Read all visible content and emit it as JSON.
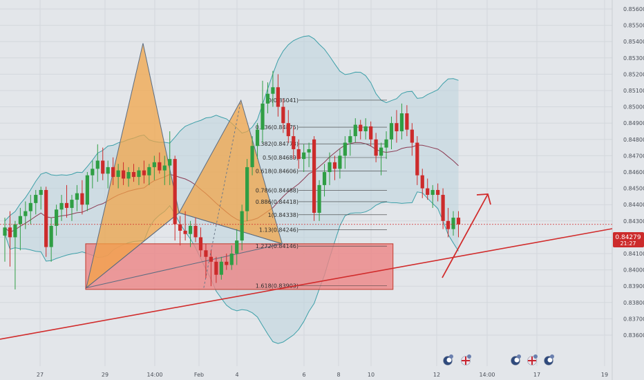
{
  "colors": {
    "background": "#e3e6ea",
    "grid": "#d3d7dc",
    "bull": "#2f9e44",
    "bear": "#cc2b2b",
    "band_line": "#3c9fa8",
    "band_fill": "#bdd3dd",
    "mid_line": "#8b3a52",
    "pattern_fill": "#f2a444",
    "zone_fill": "#ec8585",
    "zone_border": "#c0392b",
    "trendline": "#d12b2b",
    "price_badge": "#cc2b2b"
  },
  "axis": {
    "price_ticks": [
      "0.85600",
      "0.85500",
      "0.85400",
      "0.85300",
      "0.85200",
      "0.85100",
      "0.85000",
      "0.84900",
      "0.84800",
      "0.84700",
      "0.84600",
      "0.84500",
      "0.84400",
      "0.84300",
      "0.84200",
      "0.84100",
      "0.84000",
      "0.83900",
      "0.83800",
      "0.83700",
      "0.83600"
    ],
    "time_ticks": [
      "27",
      "29",
      "14:00",
      "Feb",
      "4",
      "6",
      "8",
      "10",
      "12",
      "14:00",
      "17",
      "19"
    ]
  },
  "price_badge": {
    "value": "0.84279",
    "countdown": "21:27"
  },
  "icons": [
    "moon-event-icon",
    "uk-flag-icon",
    "moon-event-icon",
    "uk-flag-icon",
    "moon-event-icon"
  ],
  "chart_data": {
    "type": "candlestick",
    "ylim": [
      0.8355,
      0.8562
    ],
    "candles": [
      [
        0.8421,
        0.8432,
        0.8405,
        0.8426
      ],
      [
        0.8426,
        0.8436,
        0.8402,
        0.842
      ],
      [
        0.842,
        0.843,
        0.8388,
        0.8428
      ],
      [
        0.8428,
        0.8438,
        0.8412,
        0.8433
      ],
      [
        0.8433,
        0.8442,
        0.8425,
        0.8436
      ],
      [
        0.8436,
        0.8446,
        0.8428,
        0.8441
      ],
      [
        0.8441,
        0.8449,
        0.8434,
        0.8446
      ],
      [
        0.8446,
        0.8451,
        0.8437,
        0.8449
      ],
      [
        0.8449,
        0.8451,
        0.8408,
        0.8414
      ],
      [
        0.8414,
        0.8432,
        0.8405,
        0.8427
      ],
      [
        0.8427,
        0.844,
        0.8421,
        0.8437
      ],
      [
        0.8437,
        0.8446,
        0.843,
        0.8441
      ],
      [
        0.8441,
        0.8452,
        0.8432,
        0.8438
      ],
      [
        0.8438,
        0.8446,
        0.843,
        0.8443
      ],
      [
        0.8443,
        0.8452,
        0.8436,
        0.8447
      ],
      [
        0.8447,
        0.8455,
        0.8434,
        0.844
      ],
      [
        0.844,
        0.846,
        0.8436,
        0.8458
      ],
      [
        0.8458,
        0.8467,
        0.845,
        0.8462
      ],
      [
        0.8462,
        0.8477,
        0.8454,
        0.8467
      ],
      [
        0.8467,
        0.8475,
        0.8455,
        0.8459
      ],
      [
        0.8459,
        0.8467,
        0.845,
        0.8463
      ],
      [
        0.8463,
        0.8469,
        0.8452,
        0.8457
      ],
      [
        0.8457,
        0.8465,
        0.845,
        0.8461
      ],
      [
        0.8461,
        0.8466,
        0.8452,
        0.8456
      ],
      [
        0.8456,
        0.8463,
        0.8451,
        0.846
      ],
      [
        0.846,
        0.8465,
        0.8454,
        0.8457
      ],
      [
        0.8457,
        0.8463,
        0.8452,
        0.8461
      ],
      [
        0.8461,
        0.8467,
        0.8453,
        0.8458
      ],
      [
        0.8458,
        0.8465,
        0.8452,
        0.8463
      ],
      [
        0.8463,
        0.847,
        0.8455,
        0.8466
      ],
      [
        0.8466,
        0.8472,
        0.8459,
        0.8461
      ],
      [
        0.8461,
        0.847,
        0.8452,
        0.8464
      ],
      [
        0.8464,
        0.8485,
        0.8452,
        0.8468
      ],
      [
        0.8468,
        0.847,
        0.8418,
        0.8428
      ],
      [
        0.8428,
        0.8433,
        0.8415,
        0.8424
      ],
      [
        0.8424,
        0.8436,
        0.8418,
        0.8422
      ],
      [
        0.8422,
        0.843,
        0.8414,
        0.8427
      ],
      [
        0.8427,
        0.8432,
        0.8417,
        0.842
      ],
      [
        0.842,
        0.8426,
        0.8408,
        0.8412
      ],
      [
        0.8412,
        0.8416,
        0.8395,
        0.8408
      ],
      [
        0.8408,
        0.8412,
        0.839,
        0.8405
      ],
      [
        0.8405,
        0.8408,
        0.8392,
        0.8397
      ],
      [
        0.8397,
        0.8408,
        0.8394,
        0.8405
      ],
      [
        0.8405,
        0.841,
        0.84,
        0.8403
      ],
      [
        0.8403,
        0.8415,
        0.84,
        0.841
      ],
      [
        0.841,
        0.8425,
        0.8403,
        0.8418
      ],
      [
        0.8418,
        0.844,
        0.8412,
        0.8436
      ],
      [
        0.8436,
        0.8468,
        0.843,
        0.8463
      ],
      [
        0.8463,
        0.8482,
        0.8458,
        0.8476
      ],
      [
        0.8476,
        0.849,
        0.8468,
        0.8486
      ],
      [
        0.8486,
        0.8516,
        0.8478,
        0.8502
      ],
      [
        0.8502,
        0.8515,
        0.8496,
        0.8508
      ],
      [
        0.8508,
        0.8522,
        0.85,
        0.8512
      ],
      [
        0.8512,
        0.852,
        0.8494,
        0.85
      ],
      [
        0.85,
        0.8505,
        0.8484,
        0.849
      ],
      [
        0.849,
        0.8498,
        0.8478,
        0.8482
      ],
      [
        0.8482,
        0.8488,
        0.8468,
        0.8474
      ],
      [
        0.8474,
        0.848,
        0.8462,
        0.8468
      ],
      [
        0.8468,
        0.8477,
        0.846,
        0.8472
      ],
      [
        0.8472,
        0.8478,
        0.8463,
        0.8474
      ],
      [
        0.848,
        0.8482,
        0.843,
        0.8435
      ],
      [
        0.8435,
        0.8455,
        0.843,
        0.8452
      ],
      [
        0.8452,
        0.8465,
        0.8445,
        0.846
      ],
      [
        0.846,
        0.8472,
        0.8452,
        0.8466
      ],
      [
        0.8466,
        0.847,
        0.8455,
        0.8462
      ],
      [
        0.8462,
        0.8474,
        0.8456,
        0.847
      ],
      [
        0.847,
        0.8482,
        0.8462,
        0.8478
      ],
      [
        0.8478,
        0.8486,
        0.847,
        0.8482
      ],
      [
        0.8482,
        0.8493,
        0.8478,
        0.8489
      ],
      [
        0.8489,
        0.8492,
        0.848,
        0.8485
      ],
      [
        0.8485,
        0.8493,
        0.848,
        0.8488
      ],
      [
        0.8488,
        0.8491,
        0.8476,
        0.848
      ],
      [
        0.848,
        0.8484,
        0.8466,
        0.847
      ],
      [
        0.847,
        0.8478,
        0.8458,
        0.8475
      ],
      [
        0.8475,
        0.8485,
        0.8468,
        0.848
      ],
      [
        0.848,
        0.8494,
        0.8474,
        0.849
      ],
      [
        0.849,
        0.8498,
        0.8478,
        0.8485
      ],
      [
        0.8485,
        0.8502,
        0.848,
        0.8496
      ],
      [
        0.8496,
        0.8501,
        0.8482,
        0.8486
      ],
      [
        0.8486,
        0.849,
        0.847,
        0.8478
      ],
      [
        0.8478,
        0.8482,
        0.8452,
        0.8458
      ],
      [
        0.8458,
        0.8462,
        0.8444,
        0.845
      ],
      [
        0.845,
        0.8456,
        0.8443,
        0.8446
      ],
      [
        0.8446,
        0.8452,
        0.8438,
        0.8449
      ],
      [
        0.8449,
        0.8453,
        0.8442,
        0.8446
      ],
      [
        0.8446,
        0.845,
        0.8425,
        0.843
      ],
      [
        0.843,
        0.8438,
        0.842,
        0.8425
      ],
      [
        0.8425,
        0.8436,
        0.8421,
        0.8432
      ],
      [
        0.8432,
        0.8436,
        0.842,
        0.8428
      ]
    ],
    "current_price": 0.84279,
    "fibonacci_levels": [
      {
        "label": "0(0.85041)",
        "price": 0.85041
      },
      {
        "label": "0.236(0.84875)",
        "price": 0.84875
      },
      {
        "label": "0.382(0.84773)",
        "price": 0.84773
      },
      {
        "label": "0.5(0.84689)",
        "price": 0.84689
      },
      {
        "label": "0.618(0.84606)",
        "price": 0.84606
      },
      {
        "label": "0.786(0.84488)",
        "price": 0.84488
      },
      {
        "label": "0.886(0.84418)",
        "price": 0.84418
      },
      {
        "label": "1(0.84338)",
        "price": 0.84338
      },
      {
        "label": "1.13(0.84246)",
        "price": 0.84246
      },
      {
        "label": "1.272(0.84146)",
        "price": 0.84146
      },
      {
        "label": "1.618(0.83903)",
        "price": 0.83903
      }
    ],
    "patterns": [
      {
        "name": "bearish-pattern",
        "points": [
          [
            15,
            0.8389
          ],
          [
            26,
            0.8539
          ],
          [
            33,
            0.8435
          ],
          [
            45,
            0.8504
          ],
          [
            53,
            0.8416
          ]
        ]
      }
    ],
    "zone": {
      "index_start": 13,
      "index_end": 56,
      "price_top": 0.8416,
      "price_bottom": 0.8388
    },
    "trendline": {
      "p1": [
        -1,
        0.8377
      ],
      "p2": [
        76,
        0.8432
      ]
    }
  }
}
